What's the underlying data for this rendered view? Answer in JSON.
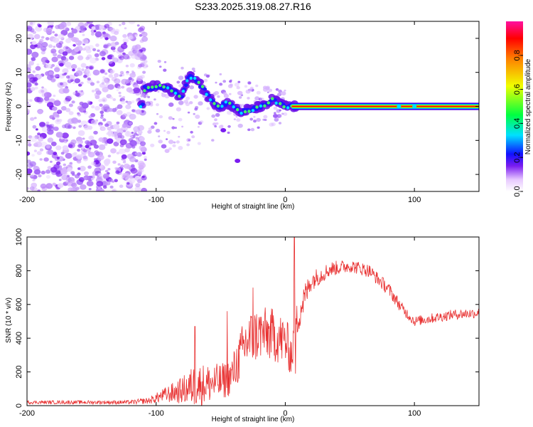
{
  "chart_data": [
    {
      "type": "heatmap",
      "title": "S233.2025.319.08.27.R16",
      "xlabel": "Height of straight line (km)",
      "ylabel": "Frequency (Hz)",
      "xlim": [
        -200,
        150
      ],
      "ylim": [
        -25,
        25
      ],
      "xticks": [
        -200,
        -100,
        0,
        100
      ],
      "yticks": [
        -20,
        -10,
        0,
        10,
        20
      ],
      "colorbar": {
        "label": "Normalized spectral amplitude",
        "range": [
          0,
          1
        ],
        "ticks": [
          "0.0",
          "0.2",
          "0.4",
          "0.6",
          "0.8"
        ],
        "colors": [
          "#ffffff",
          "#e7c8ff",
          "#7a1cf0",
          "#1010ff",
          "#00e0ff",
          "#00ff40",
          "#f0ff00",
          "#ff8000",
          "#ff0000",
          "#ff10a0"
        ]
      },
      "ridge": [
        {
          "x": -110,
          "y": 5
        },
        {
          "x": -100,
          "y": 6
        },
        {
          "x": -90,
          "y": 5
        },
        {
          "x": -80,
          "y": 3
        },
        {
          "x": -75,
          "y": 9
        },
        {
          "x": -70,
          "y": 8
        },
        {
          "x": -65,
          "y": 6
        },
        {
          "x": -60,
          "y": 3
        },
        {
          "x": -55,
          "y": 1
        },
        {
          "x": -50,
          "y": 0
        },
        {
          "x": -45,
          "y": 1
        },
        {
          "x": -40,
          "y": 0
        },
        {
          "x": -35,
          "y": -2
        },
        {
          "x": -30,
          "y": -1
        },
        {
          "x": -25,
          "y": -1
        },
        {
          "x": -20,
          "y": 0
        },
        {
          "x": -15,
          "y": 0
        },
        {
          "x": -10,
          "y": 2
        },
        {
          "x": -5,
          "y": 1
        },
        {
          "x": 0,
          "y": 0
        },
        {
          "x": 10,
          "y": 0
        },
        {
          "x": 50,
          "y": 0
        },
        {
          "x": 100,
          "y": 0
        },
        {
          "x": 150,
          "y": 0
        }
      ]
    },
    {
      "type": "line",
      "xlabel": "Height of straight line (km)",
      "ylabel": "SNR (10 * v/v)",
      "xlim": [
        -200,
        150
      ],
      "ylim": [
        0,
        1000
      ],
      "xticks": [
        -200,
        -100,
        0,
        100
      ],
      "yticks": [
        0,
        200,
        400,
        600,
        800,
        1000
      ],
      "color": "#e83030",
      "series": [
        {
          "name": "SNR",
          "envelope": [
            {
              "x": -200,
              "y": 20,
              "noise": 10
            },
            {
              "x": -120,
              "y": 20,
              "noise": 12
            },
            {
              "x": -105,
              "y": 30,
              "noise": 20
            },
            {
              "x": -95,
              "y": 60,
              "noise": 40
            },
            {
              "x": -80,
              "y": 90,
              "noise": 80
            },
            {
              "x": -70,
              "y": 120,
              "noise": 130
            },
            {
              "x": -60,
              "y": 130,
              "noise": 120
            },
            {
              "x": -50,
              "y": 140,
              "noise": 110
            },
            {
              "x": -42,
              "y": 170,
              "noise": 110
            },
            {
              "x": -30,
              "y": 380,
              "noise": 180
            },
            {
              "x": -20,
              "y": 430,
              "noise": 160
            },
            {
              "x": -10,
              "y": 420,
              "noise": 160
            },
            {
              "x": 0,
              "y": 380,
              "noise": 150
            },
            {
              "x": 5,
              "y": 300,
              "noise": 130
            },
            {
              "x": 10,
              "y": 540,
              "noise": 120
            },
            {
              "x": 20,
              "y": 740,
              "noise": 60
            },
            {
              "x": 35,
              "y": 810,
              "noise": 45
            },
            {
              "x": 50,
              "y": 830,
              "noise": 40
            },
            {
              "x": 65,
              "y": 800,
              "noise": 40
            },
            {
              "x": 80,
              "y": 690,
              "noise": 40
            },
            {
              "x": 90,
              "y": 580,
              "noise": 35
            },
            {
              "x": 100,
              "y": 500,
              "noise": 30
            },
            {
              "x": 115,
              "y": 520,
              "noise": 30
            },
            {
              "x": 130,
              "y": 540,
              "noise": 30
            },
            {
              "x": 150,
              "y": 550,
              "noise": 30
            }
          ],
          "spikes": [
            {
              "x": 7,
              "y": 1000
            },
            {
              "x": 8,
              "y": 190
            },
            {
              "x": -25,
              "y": 700
            },
            {
              "x": -45,
              "y": 560
            },
            {
              "x": -70,
              "y": 470
            }
          ]
        }
      ]
    }
  ]
}
